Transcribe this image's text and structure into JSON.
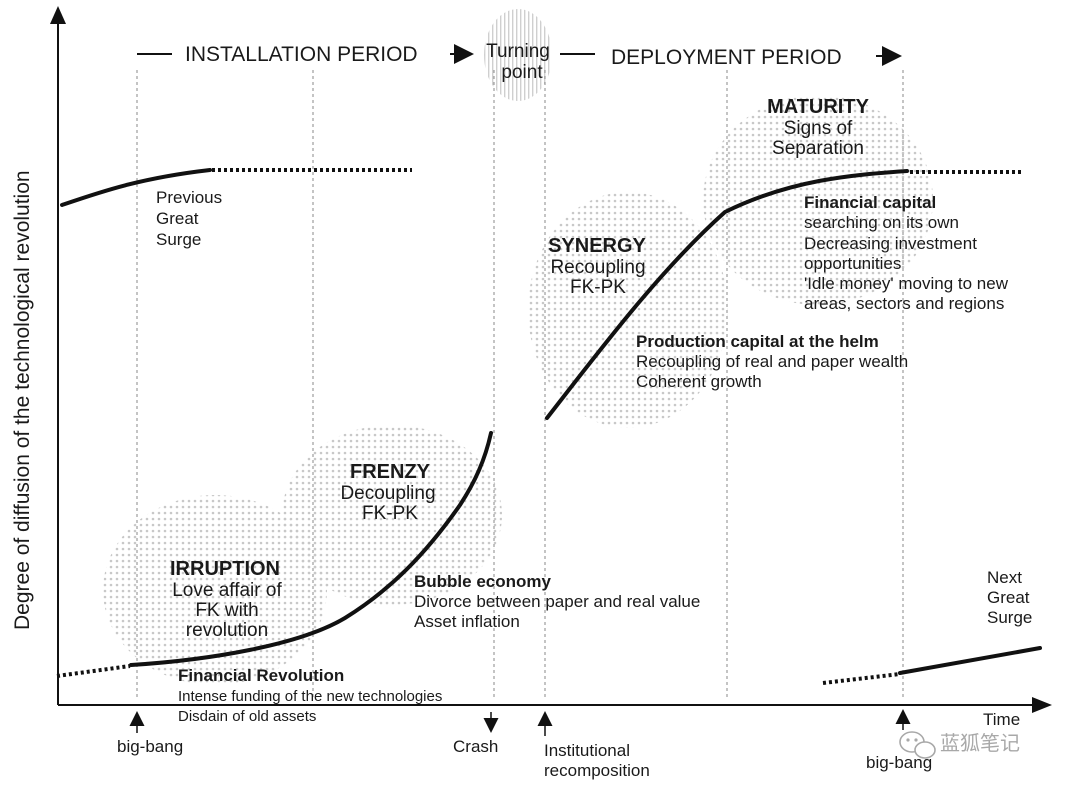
{
  "axes": {
    "y_label": "Degree of diffusion of the technological revolution",
    "x_label": "Time"
  },
  "periods": {
    "installation": "INSTALLATION PERIOD",
    "turning_point_line1": "Turning",
    "turning_point_line2": "point",
    "deployment": "DEPLOYMENT PERIOD"
  },
  "previous_surge": [
    "Previous",
    "Great",
    "Surge"
  ],
  "next_surge": [
    "Next",
    "Great",
    "Surge"
  ],
  "phases": {
    "irruption": {
      "title": "IRRUPTION",
      "lines": [
        "Love affair of",
        "FK with",
        "revolution"
      ]
    },
    "frenzy": {
      "title": "FRENZY",
      "lines": [
        "Decoupling",
        "FK-PK"
      ]
    },
    "synergy": {
      "title": "SYNERGY",
      "lines": [
        "Recoupling",
        "FK-PK"
      ]
    },
    "maturity": {
      "title": "MATURITY",
      "lines": [
        "Signs of",
        "Separation"
      ]
    }
  },
  "notes": {
    "financial_revolution": {
      "title": "Financial Revolution",
      "lines": [
        "Intense funding of the new technologies",
        "Disdain of old assets"
      ]
    },
    "bubble_economy": {
      "title": "Bubble economy",
      "lines": [
        "Divorce between paper and real value",
        "Asset inflation"
      ]
    },
    "production_capital": {
      "title": "Production capital at the helm",
      "lines": [
        "Recoupling of real and paper wealth",
        "Coherent growth"
      ]
    },
    "financial_capital": {
      "title": "Financial capital",
      "lines": [
        "searching on its own",
        "Decreasing investment",
        "opportunities",
        "'Idle money' moving to new",
        "areas, sectors and regions"
      ]
    }
  },
  "markers": {
    "big_bang_1": "big-bang",
    "crash": "Crash",
    "institutional_line1": "Institutional",
    "institutional_line2": "recomposition",
    "big_bang_2": "big-bang"
  },
  "watermark": "蓝狐笔记"
}
